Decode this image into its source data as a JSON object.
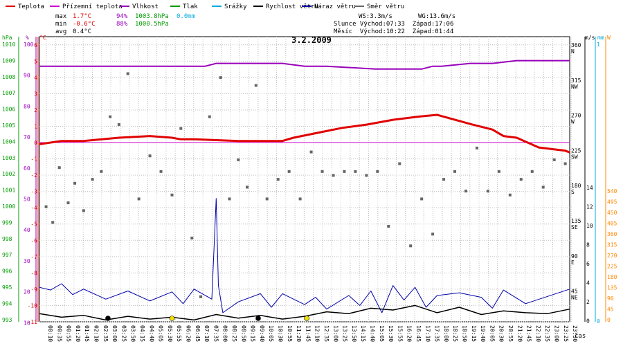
{
  "legend": [
    {
      "label": "Teplota",
      "color": "#e00000"
    },
    {
      "label": "Přízemní teplota",
      "color": "#cc00cc"
    },
    {
      "label": "Vlhkost",
      "color": "#9900bb"
    },
    {
      "label": "Tlak",
      "color": "#009900"
    },
    {
      "label": "Srážky",
      "color": "#00aadd"
    },
    {
      "label": "Rychlost větru",
      "color": "#000000"
    },
    {
      "label": "Náraz větru",
      "color": "#0000aa"
    },
    {
      "label": "Směr větru",
      "color": "#666666"
    }
  ],
  "stats": {
    "max": {
      "label": "max",
      "temp": "1.7°C",
      "hum": "94%",
      "press": "1003.8hPa",
      "rain": "0.0mm"
    },
    "min": {
      "label": "min",
      "temp": "-0.6°C",
      "hum": "88%",
      "press": "1000.5hPa"
    },
    "avg": {
      "label": "avg",
      "temp": "0.4°C"
    }
  },
  "wind_info": {
    "ws": "WS:3.3m/s",
    "wg": "WG:13.6m/s"
  },
  "sun": "Slunce Východ:07:33  Západ:17:06",
  "moon": "Měsíc  Východ:10:22  Západ:01:44",
  "chart_data": {
    "type": "line",
    "title": "3.2.2009",
    "xlabel": "čas",
    "units": {
      "pressure": "hPa",
      "humidity": "%",
      "temperature": "°C",
      "wind_speed": "m/s",
      "rain": "mm",
      "direction": "W"
    },
    "x_ticks": [
      "00:10",
      "00:35",
      "00:55",
      "01:20",
      "01:45",
      "02:10",
      "02:35",
      "03:00",
      "03:25",
      "03:50",
      "04:15",
      "04:40",
      "05:05",
      "05:30",
      "05:55",
      "06:20",
      "06:45",
      "07:10",
      "07:35",
      "08:00",
      "08:25",
      "08:50",
      "09:15",
      "09:40",
      "10:05",
      "10:30",
      "10:55",
      "11:20",
      "11:45",
      "12:10",
      "12:35",
      "13:00",
      "13:25",
      "13:50",
      "14:15",
      "14:40",
      "15:05",
      "15:30",
      "15:55",
      "16:20",
      "16:45",
      "17:10",
      "17:35",
      "18:00",
      "18:25",
      "18:50",
      "19:15",
      "19:40",
      "20:05",
      "20:30",
      "20:55",
      "21:20",
      "21:45",
      "22:10",
      "22:35",
      "23:00",
      "23:25",
      "23:50"
    ],
    "axes": {
      "pressure": {
        "label": "hPa",
        "ticks": [
          "1010",
          "1009",
          "1008",
          "1007",
          "1006",
          "1005",
          "1004",
          "1003",
          "1002",
          "1001",
          "1000",
          "999",
          "998",
          "997",
          "996",
          "995",
          "994",
          "993"
        ]
      },
      "humidity": {
        "label": "%",
        "ticks": [
          "100",
          "90",
          "80",
          "70",
          "60",
          "50",
          "40",
          "30",
          "20",
          "10"
        ]
      },
      "temperature": {
        "label": "°C",
        "range": [
          -11,
          6.5
        ],
        "ticks": [
          "6",
          "5",
          "4",
          "3",
          "2",
          "1",
          "0",
          "-1",
          "-2",
          "-3",
          "-4",
          "-5",
          "-6",
          "-7",
          "-8",
          "-9",
          "-10",
          "-11"
        ]
      },
      "direction": {
        "ticks": [
          {
            "deg": "360",
            "name": "N"
          },
          {
            "deg": "315",
            "name": "NW"
          },
          {
            "deg": "270",
            "name": "W"
          },
          {
            "deg": "225",
            "name": "SW"
          },
          {
            "deg": "180",
            "name": "S"
          },
          {
            "deg": "135",
            "name": "SE"
          },
          {
            "deg": "90",
            "name": "E"
          },
          {
            "deg": "45",
            "name": "NE"
          }
        ]
      },
      "wind_speed": {
        "label": "m/s",
        "ticks": [
          "14",
          "12",
          "10",
          "8",
          "6",
          "4",
          "2",
          "0"
        ]
      },
      "rain": {
        "label": "mm",
        "ticks": [
          "1",
          "0"
        ]
      },
      "radiation": {
        "label": "W",
        "ticks": [
          "540",
          "495",
          "450",
          "405",
          "360",
          "315",
          "270",
          "225",
          "180",
          "135",
          "90",
          "45",
          "0"
        ]
      }
    },
    "series": {
      "temperature": {
        "color": "#e00000",
        "t": [
          0,
          1.0,
          2.0,
          3.6,
          5.0,
          6.0,
          6.4,
          7.0,
          9.0,
          11.0,
          11.5,
          12.6,
          13.7,
          14.8,
          16.0,
          17.2,
          18.0,
          19.6,
          20.5,
          21.0,
          21.6,
          22.6,
          23.8,
          24.0
        ],
        "v": [
          -0.1,
          0.1,
          0.1,
          0.3,
          0.4,
          0.3,
          0.2,
          0.2,
          0.1,
          0.1,
          0.3,
          0.6,
          0.9,
          1.1,
          1.4,
          1.6,
          1.7,
          1.1,
          0.8,
          0.4,
          0.3,
          -0.3,
          -0.5,
          -0.6
        ]
      },
      "ground_temperature": {
        "color": "#cc00cc",
        "t": [
          0,
          24
        ],
        "v": [
          0,
          0
        ]
      },
      "humidity": {
        "color": "#9900bb",
        "t": [
          0,
          7.5,
          8.0,
          11.0,
          12.0,
          13.0,
          15.2,
          17.3,
          17.8,
          18.2,
          19.5,
          20.5,
          21.6,
          22.0,
          24.0
        ],
        "v": [
          91,
          91,
          92,
          92,
          91,
          91,
          90,
          90,
          91,
          91,
          92,
          92,
          93,
          93,
          93
        ]
      },
      "wind_gust": {
        "color": "#0000aa",
        "t": [
          0,
          0.5,
          1.0,
          1.5,
          2.0,
          3.0,
          4.0,
          5.0,
          6.0,
          6.5,
          7.0,
          7.8,
          8.0,
          8.1,
          8.3,
          9.0,
          10.0,
          10.5,
          11.0,
          12.0,
          12.5,
          13.0,
          14.0,
          14.5,
          15.0,
          15.5,
          16.0,
          16.5,
          17.0,
          17.5,
          18.0,
          19.0,
          20.0,
          20.5,
          21.0,
          22.0,
          23.0,
          24.0
        ],
        "v": [
          3.8,
          3.5,
          4.2,
          3.0,
          3.6,
          2.5,
          3.4,
          2.3,
          3.3,
          2.0,
          3.6,
          2.5,
          13.6,
          4.0,
          1.0,
          2.2,
          3.1,
          1.6,
          3.1,
          1.9,
          2.7,
          1.4,
          2.9,
          1.8,
          3.4,
          1.0,
          4.0,
          2.4,
          3.8,
          1.6,
          2.9,
          3.2,
          2.7,
          1.5,
          3.5,
          2.0,
          2.8,
          3.6
        ]
      },
      "wind_speed": {
        "color": "#000000",
        "t": [
          0,
          1,
          2,
          3,
          4,
          5,
          6,
          7,
          8,
          9,
          10,
          11,
          12,
          13,
          14,
          15,
          16,
          17,
          18,
          19,
          20,
          21,
          22,
          23,
          24
        ],
        "v": [
          0.9,
          0.5,
          0.7,
          0.2,
          0.6,
          0.3,
          0.5,
          0.2,
          0.8,
          0.4,
          0.7,
          0.3,
          0.6,
          1.1,
          0.9,
          1.5,
          1.3,
          1.8,
          1.0,
          1.6,
          0.8,
          1.2,
          1.0,
          0.9,
          1.4
        ]
      },
      "wind_direction": {
        "color": "#666666",
        "t": [
          0.3,
          0.6,
          0.9,
          1.3,
          1.6,
          2.0,
          2.4,
          2.8,
          3.2,
          3.6,
          4.0,
          4.5,
          5.0,
          5.5,
          6.0,
          6.4,
          6.9,
          7.3,
          7.7,
          8.2,
          8.6,
          9.0,
          9.4,
          9.8,
          10.3,
          10.8,
          11.3,
          11.8,
          12.3,
          12.8,
          13.3,
          13.8,
          14.3,
          14.8,
          15.3,
          15.8,
          16.3,
          16.8,
          17.3,
          17.8,
          18.3,
          18.8,
          19.3,
          19.8,
          20.3,
          20.8,
          21.3,
          21.8,
          22.3,
          22.8,
          23.3,
          23.8
        ],
        "v": [
          155,
          135,
          205,
          160,
          185,
          150,
          190,
          200,
          270,
          260,
          325,
          165,
          220,
          200,
          170,
          255,
          115,
          40,
          270,
          320,
          165,
          215,
          180,
          310,
          165,
          190,
          200,
          165,
          225,
          200,
          195,
          200,
          200,
          195,
          200,
          130,
          210,
          105,
          165,
          120,
          190,
          200,
          175,
          230,
          175,
          200,
          170,
          190,
          200,
          180,
          215,
          210
        ]
      }
    },
    "markers": [
      {
        "t": 6.0,
        "type": "sun",
        "color": "#f0e000"
      },
      {
        "t": 12.1,
        "type": "moon",
        "color": "#f0e000"
      },
      {
        "t": 3.1,
        "type": "night",
        "color": "#000000"
      },
      {
        "t": 9.9,
        "type": "night",
        "color": "#000000"
      }
    ]
  }
}
